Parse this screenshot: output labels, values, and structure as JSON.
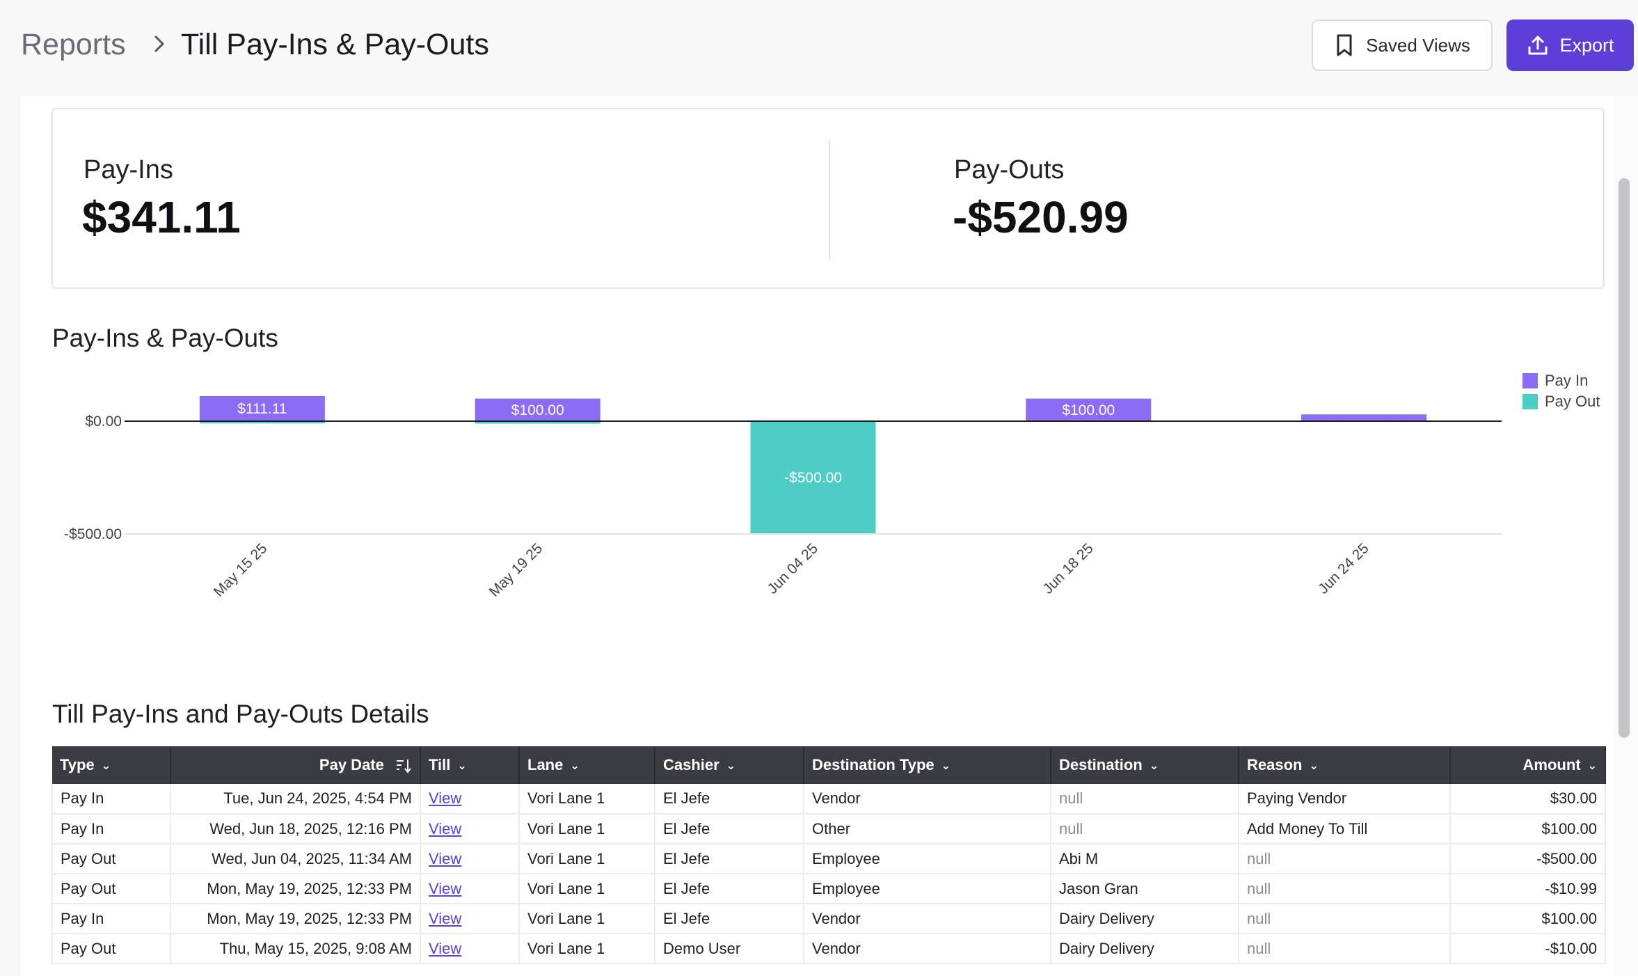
{
  "header": {
    "breadcrumb_root": "Reports",
    "breadcrumb_current": "Till Pay-Ins & Pay-Outs",
    "saved_views_label": "Saved Views",
    "export_label": "Export"
  },
  "stats": {
    "pay_ins_label": "Pay-Ins",
    "pay_ins_value": "$341.11",
    "pay_outs_label": "Pay-Outs",
    "pay_outs_value": "-$520.99"
  },
  "chart_section": {
    "title": "Pay-Ins & Pay-Outs"
  },
  "chart_data": {
    "type": "bar",
    "categories": [
      "May 15 25",
      "May 19 25",
      "Jun 04 25",
      "Jun 18 25",
      "Jun 24 25"
    ],
    "series": [
      {
        "name": "Pay In",
        "color": "#8b6cf5",
        "values": [
          111.11,
          100.0,
          0,
          100.0,
          30.0
        ]
      },
      {
        "name": "Pay Out",
        "color": "#4ecdc4",
        "values": [
          -10.0,
          -10.99,
          -500.0,
          0,
          0
        ]
      }
    ],
    "data_labels": [
      {
        "category": "May 15 25",
        "series": "Pay In",
        "text": "$111.11"
      },
      {
        "category": "May 19 25",
        "series": "Pay In",
        "text": "$100.00"
      },
      {
        "category": "Jun 04 25",
        "series": "Pay Out",
        "text": "-$500.00"
      },
      {
        "category": "Jun 18 25",
        "series": "Pay In",
        "text": "$100.00"
      }
    ],
    "y_ticks": [
      {
        "value": 0,
        "label": "$0.00"
      },
      {
        "value": -500,
        "label": "-$500.00"
      }
    ],
    "ylim": [
      -500,
      111.11
    ],
    "legend_position": "top-right",
    "grid": false
  },
  "table": {
    "title": "Till Pay-Ins and Pay-Outs Details",
    "columns": [
      "Type",
      "Pay Date",
      "Till",
      "Lane",
      "Cashier",
      "Destination Type",
      "Destination",
      "Reason",
      "Amount"
    ],
    "rows": [
      [
        "Pay In",
        "Tue, Jun 24, 2025, 4:54 PM",
        "View",
        "Vori Lane 1",
        "El Jefe",
        "Vendor",
        "null",
        "Paying Vendor",
        "$30.00"
      ],
      [
        "Pay In",
        "Wed, Jun 18, 2025, 12:16 PM",
        "View",
        "Vori Lane 1",
        "El Jefe",
        "Other",
        "null",
        "Add Money To Till",
        "$100.00"
      ],
      [
        "Pay Out",
        "Wed, Jun 04, 2025, 11:34 AM",
        "View",
        "Vori Lane 1",
        "El Jefe",
        "Employee",
        "Abi M",
        "null",
        "-$500.00"
      ],
      [
        "Pay Out",
        "Mon, May 19, 2025, 12:33 PM",
        "View",
        "Vori Lane 1",
        "El Jefe",
        "Employee",
        "Jason Gran",
        "null",
        "-$10.99"
      ],
      [
        "Pay In",
        "Mon, May 19, 2025, 12:33 PM",
        "View",
        "Vori Lane 1",
        "El Jefe",
        "Vendor",
        "Dairy Delivery",
        "null",
        "$100.00"
      ],
      [
        "Pay Out",
        "Thu, May 15, 2025, 9:08 AM",
        "View",
        "Vori Lane 1",
        "Demo User",
        "Vendor",
        "Dairy Delivery",
        "null",
        "-$10.00"
      ]
    ]
  },
  "icons": {
    "breadcrumb_separator": "chevron-right-icon",
    "saved_views": "bookmark-icon",
    "export": "upload-icon",
    "sort": "sort-descending-icon",
    "column_menu": "chevron-down-icon"
  }
}
